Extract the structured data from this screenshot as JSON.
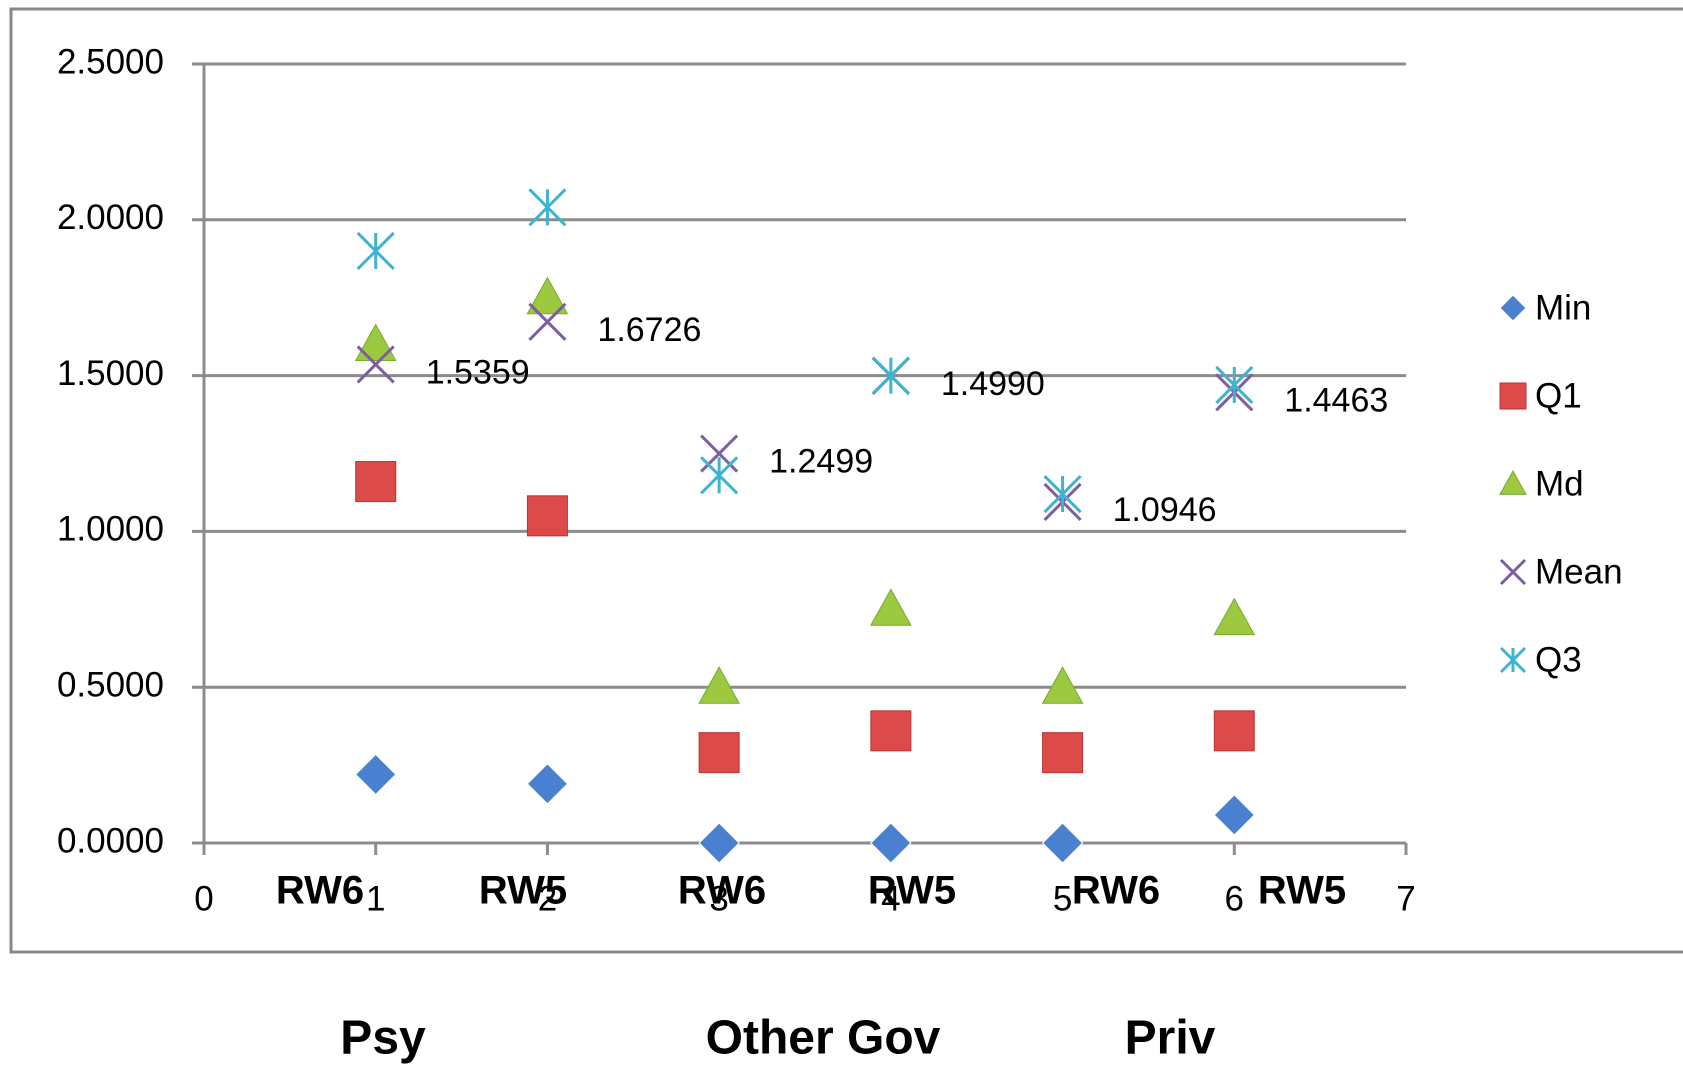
{
  "chart_data": {
    "type": "scatter",
    "x": [
      1,
      2,
      3,
      4,
      5,
      6
    ],
    "xlim": [
      0,
      7
    ],
    "xticks": [
      0,
      1,
      2,
      3,
      4,
      5,
      6,
      7
    ],
    "ylim": [
      0,
      2.5
    ],
    "yticks": [
      {
        "value": 0,
        "label": "0.0000"
      },
      {
        "value": 0.5,
        "label": "0.5000"
      },
      {
        "value": 1,
        "label": "1.0000"
      },
      {
        "value": 1.5,
        "label": "1.5000"
      },
      {
        "value": 2,
        "label": "2.0000"
      },
      {
        "value": 2.5,
        "label": "2.5000"
      }
    ],
    "grid": true,
    "legend": "right",
    "category_labels": [
      "RW6",
      "RW5",
      "RW6",
      "RW5",
      "RW6",
      "RW5"
    ],
    "groups": [
      "Psy",
      "Other Gov",
      "Priv"
    ],
    "series": [
      {
        "name": "Min",
        "color": "#4a80d0",
        "marker": "diamond",
        "values": [
          0.22,
          0.19,
          0.0,
          0.0,
          0.0,
          0.09
        ]
      },
      {
        "name": "Q1",
        "color": "#dc4a4a",
        "marker": "square",
        "values": [
          1.16,
          1.05,
          0.29,
          0.36,
          0.29,
          0.36
        ]
      },
      {
        "name": "Md",
        "color": "#9cc93f",
        "marker": "triangle",
        "values": [
          1.6,
          1.75,
          0.5,
          0.75,
          0.5,
          0.72
        ]
      },
      {
        "name": "Mean",
        "color": "#7e5ea3",
        "marker": "x",
        "values": [
          1.5359,
          1.6726,
          1.2499,
          1.499,
          1.0946,
          1.4463
        ],
        "value_labels": [
          "1.5359",
          "1.6726",
          "1.2499",
          "1.4990",
          "1.0946",
          "1.4463"
        ]
      },
      {
        "name": "Q3",
        "color": "#3fb3cf",
        "marker": "star",
        "values": [
          1.9,
          2.04,
          1.18,
          1.5,
          1.12,
          1.47
        ]
      }
    ]
  }
}
